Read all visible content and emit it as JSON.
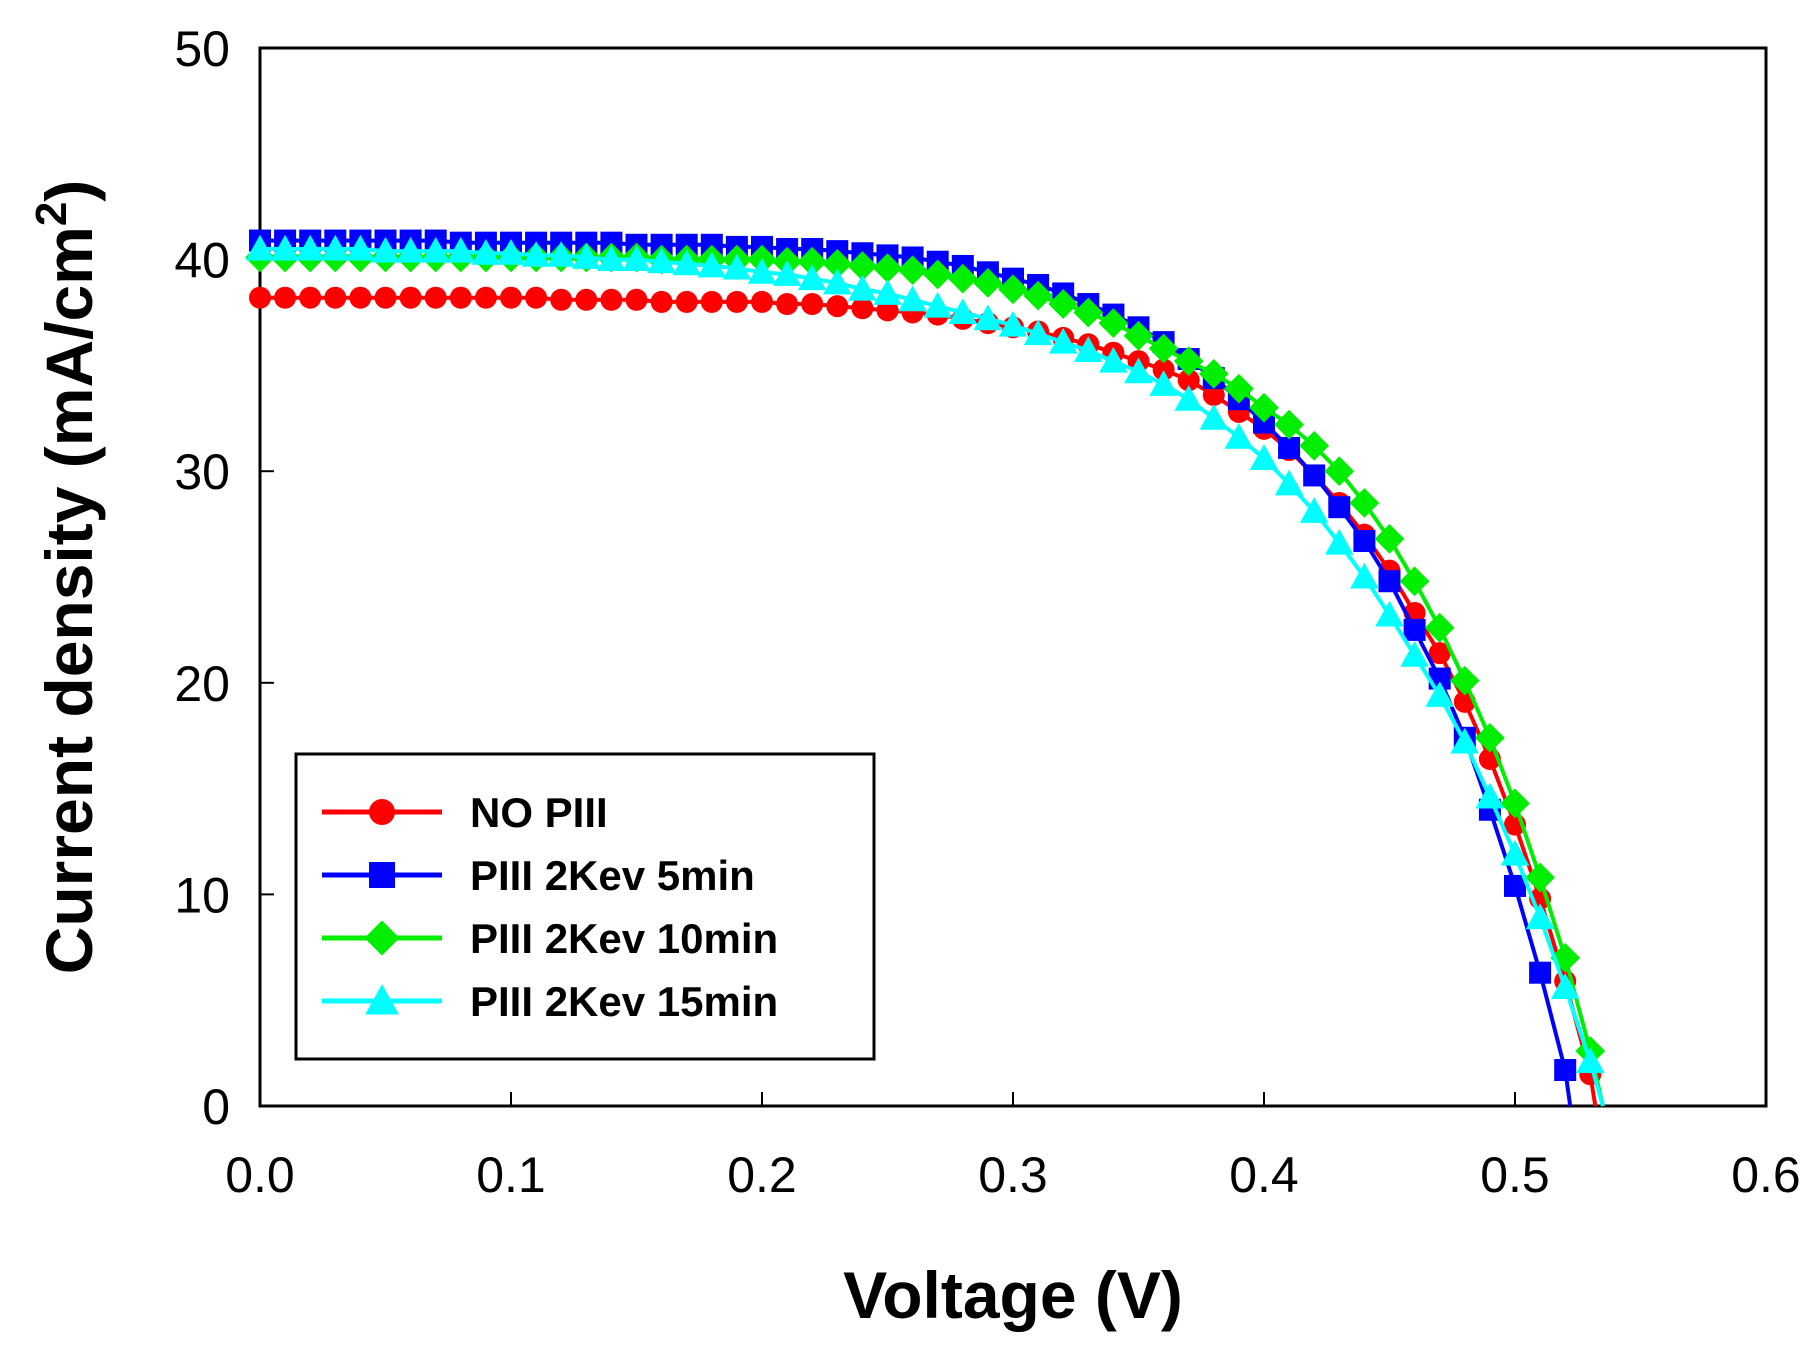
{
  "chart_data": {
    "type": "line",
    "title": "",
    "xlabel": "Voltage (V)",
    "ylabel": "Current density (mA/cm",
    "ylabel_sup": "2",
    "ylabel_close": ")",
    "xlim": [
      0.0,
      0.6
    ],
    "ylim": [
      0,
      50
    ],
    "xticks": [
      0.0,
      0.1,
      0.2,
      0.3,
      0.4,
      0.5,
      0.6
    ],
    "xtick_labels": [
      "0.0",
      "0.1",
      "0.2",
      "0.3",
      "0.4",
      "0.5",
      "0.6"
    ],
    "yticks": [
      0,
      10,
      20,
      30,
      40,
      50
    ],
    "ytick_labels": [
      "0",
      "10",
      "20",
      "30",
      "40",
      "50"
    ],
    "grid": false,
    "legend_position": "bottom-left",
    "series": [
      {
        "name": "NO PIII",
        "color": "#ff0000",
        "marker": "circle",
        "x": [
          0.0,
          0.01,
          0.02,
          0.03,
          0.04,
          0.05,
          0.06,
          0.07,
          0.08,
          0.09,
          0.1,
          0.11,
          0.12,
          0.13,
          0.14,
          0.15,
          0.16,
          0.17,
          0.18,
          0.19,
          0.2,
          0.21,
          0.22,
          0.23,
          0.24,
          0.25,
          0.26,
          0.27,
          0.28,
          0.29,
          0.3,
          0.31,
          0.32,
          0.33,
          0.34,
          0.35,
          0.36,
          0.37,
          0.38,
          0.39,
          0.4,
          0.41,
          0.42,
          0.43,
          0.44,
          0.45,
          0.46,
          0.47,
          0.48,
          0.49,
          0.5,
          0.51,
          0.52,
          0.53,
          0.532
        ],
        "y": [
          38.2,
          38.2,
          38.2,
          38.2,
          38.2,
          38.2,
          38.2,
          38.2,
          38.2,
          38.2,
          38.2,
          38.2,
          38.1,
          38.1,
          38.1,
          38.1,
          38.0,
          38.0,
          38.0,
          38.0,
          38.0,
          37.9,
          37.9,
          37.8,
          37.7,
          37.6,
          37.5,
          37.4,
          37.2,
          37.0,
          36.8,
          36.6,
          36.3,
          36.0,
          35.6,
          35.2,
          34.8,
          34.3,
          33.6,
          32.8,
          32.0,
          31.0,
          29.8,
          28.5,
          27.0,
          25.3,
          23.3,
          21.4,
          19.1,
          16.4,
          13.3,
          9.8,
          5.9,
          1.5,
          0.0
        ]
      },
      {
        "name": "PIII 2Kev 5min",
        "color": "#0000ff",
        "marker": "square",
        "x": [
          0.0,
          0.01,
          0.02,
          0.03,
          0.04,
          0.05,
          0.06,
          0.07,
          0.08,
          0.09,
          0.1,
          0.11,
          0.12,
          0.13,
          0.14,
          0.15,
          0.16,
          0.17,
          0.18,
          0.19,
          0.2,
          0.21,
          0.22,
          0.23,
          0.24,
          0.25,
          0.26,
          0.27,
          0.28,
          0.29,
          0.3,
          0.31,
          0.32,
          0.33,
          0.34,
          0.35,
          0.36,
          0.37,
          0.38,
          0.39,
          0.4,
          0.41,
          0.42,
          0.43,
          0.44,
          0.45,
          0.46,
          0.47,
          0.48,
          0.49,
          0.5,
          0.51,
          0.52,
          0.522
        ],
        "y": [
          40.9,
          40.9,
          40.9,
          40.9,
          40.9,
          40.9,
          40.9,
          40.9,
          40.8,
          40.8,
          40.8,
          40.8,
          40.8,
          40.8,
          40.8,
          40.7,
          40.7,
          40.7,
          40.7,
          40.6,
          40.6,
          40.5,
          40.5,
          40.4,
          40.3,
          40.2,
          40.1,
          39.9,
          39.7,
          39.4,
          39.1,
          38.8,
          38.4,
          37.9,
          37.4,
          36.8,
          36.1,
          35.3,
          34.4,
          33.4,
          32.3,
          31.1,
          29.8,
          28.3,
          26.7,
          24.8,
          22.5,
          20.2,
          17.4,
          14.0,
          10.4,
          6.3,
          1.7,
          0.0
        ]
      },
      {
        "name": "PIII 2Kev 10min",
        "color": "#00ee00",
        "marker": "diamond",
        "x": [
          0.0,
          0.01,
          0.02,
          0.03,
          0.04,
          0.05,
          0.06,
          0.07,
          0.08,
          0.09,
          0.1,
          0.11,
          0.12,
          0.13,
          0.14,
          0.15,
          0.16,
          0.17,
          0.18,
          0.19,
          0.2,
          0.21,
          0.22,
          0.23,
          0.24,
          0.25,
          0.26,
          0.27,
          0.28,
          0.29,
          0.3,
          0.31,
          0.32,
          0.33,
          0.34,
          0.35,
          0.36,
          0.37,
          0.38,
          0.39,
          0.4,
          0.41,
          0.42,
          0.43,
          0.44,
          0.45,
          0.46,
          0.47,
          0.48,
          0.49,
          0.5,
          0.51,
          0.52,
          0.53,
          0.535
        ],
        "y": [
          40.1,
          40.1,
          40.1,
          40.1,
          40.1,
          40.1,
          40.1,
          40.1,
          40.1,
          40.1,
          40.1,
          40.1,
          40.1,
          40.1,
          40.1,
          40.1,
          40.0,
          40.0,
          40.0,
          40.0,
          40.0,
          39.9,
          39.9,
          39.8,
          39.7,
          39.6,
          39.5,
          39.3,
          39.1,
          38.9,
          38.6,
          38.3,
          37.9,
          37.5,
          37.0,
          36.4,
          35.8,
          35.2,
          34.6,
          33.9,
          33.0,
          32.2,
          31.2,
          30.0,
          28.5,
          26.8,
          24.8,
          22.6,
          20.1,
          17.4,
          14.3,
          10.8,
          7.0,
          2.6,
          0.0
        ]
      },
      {
        "name": "PIII 2Kev 15min",
        "color": "#00ffff",
        "marker": "triangle",
        "x": [
          0.0,
          0.01,
          0.02,
          0.03,
          0.04,
          0.05,
          0.06,
          0.07,
          0.08,
          0.09,
          0.1,
          0.11,
          0.12,
          0.13,
          0.14,
          0.15,
          0.16,
          0.17,
          0.18,
          0.19,
          0.2,
          0.21,
          0.22,
          0.23,
          0.24,
          0.25,
          0.26,
          0.27,
          0.28,
          0.29,
          0.3,
          0.31,
          0.32,
          0.33,
          0.34,
          0.35,
          0.36,
          0.37,
          0.38,
          0.39,
          0.4,
          0.41,
          0.42,
          0.43,
          0.44,
          0.45,
          0.46,
          0.47,
          0.48,
          0.49,
          0.5,
          0.51,
          0.52,
          0.53,
          0.535
        ],
        "y": [
          40.5,
          40.5,
          40.5,
          40.5,
          40.5,
          40.4,
          40.4,
          40.4,
          40.4,
          40.3,
          40.3,
          40.2,
          40.2,
          40.1,
          40.0,
          40.0,
          39.9,
          39.8,
          39.7,
          39.6,
          39.4,
          39.3,
          39.1,
          38.9,
          38.6,
          38.4,
          38.1,
          37.8,
          37.5,
          37.2,
          36.9,
          36.5,
          36.1,
          35.7,
          35.2,
          34.7,
          34.1,
          33.4,
          32.5,
          31.6,
          30.6,
          29.4,
          28.1,
          26.6,
          25.0,
          23.2,
          21.3,
          19.4,
          17.2,
          14.6,
          11.9,
          8.9,
          5.6,
          2.1,
          0.0
        ]
      }
    ]
  }
}
